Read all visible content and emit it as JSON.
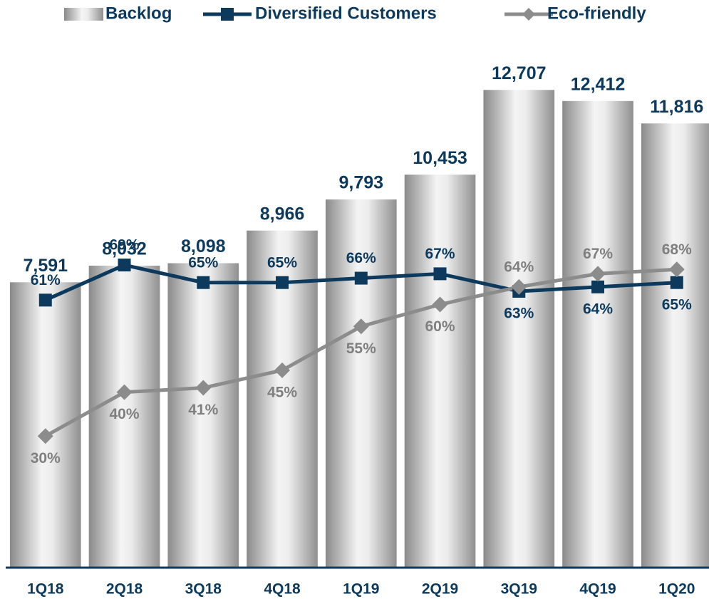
{
  "chart_data": {
    "type": "bar_line",
    "categories": [
      "1Q18",
      "2Q18",
      "3Q18",
      "4Q18",
      "1Q19",
      "2Q19",
      "3Q19",
      "4Q19",
      "1Q20"
    ],
    "ylim": [
      0,
      14000
    ],
    "y2lim": [
      0,
      120
    ],
    "series": [
      {
        "name": "Backlog",
        "type": "bar",
        "color": "#a6a6a6",
        "values": [
          7591,
          8032,
          8098,
          8966,
          9793,
          10453,
          12707,
          12412,
          11816
        ],
        "value_labels": [
          "7,591",
          "8,032",
          "8,098",
          "8,966",
          "9,793",
          "10,453",
          "12,707",
          "12,412",
          "11,816"
        ]
      },
      {
        "name": "Diversified Customers",
        "type": "line",
        "axis": "y2",
        "color": "#0d3a5c",
        "marker": "square",
        "values": [
          61,
          69,
          65,
          65,
          66,
          67,
          63,
          64,
          65
        ],
        "value_labels": [
          "61%",
          "69%",
          "65%",
          "65%",
          "66%",
          "67%",
          "63%",
          "64%",
          "65%"
        ]
      },
      {
        "name": "Eco-friendly",
        "type": "line",
        "axis": "y2",
        "color": "#8c8c8c",
        "marker": "diamond",
        "values": [
          30,
          40,
          41,
          45,
          55,
          60,
          64,
          67,
          68
        ],
        "value_labels": [
          "30%",
          "40%",
          "41%",
          "45%",
          "55%",
          "60%",
          "64%",
          "67%",
          "68%"
        ]
      }
    ]
  }
}
